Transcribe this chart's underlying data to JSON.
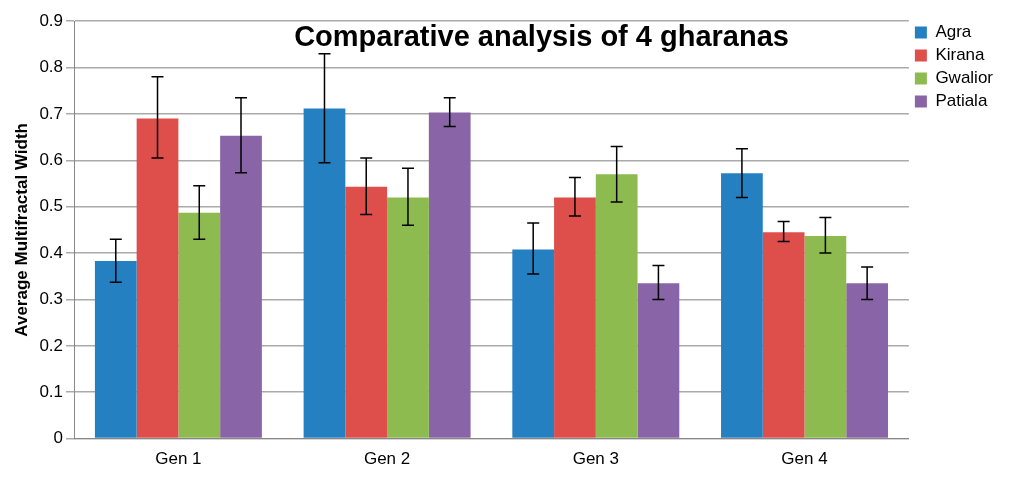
{
  "chart_data": {
    "type": "bar",
    "title": "Comparative analysis of 4 gharanas",
    "ylabel": "Average Multifractal Width",
    "categories": [
      "Gen 1",
      "Gen 2",
      "Gen 3",
      "Gen 4"
    ],
    "series": [
      {
        "name": "Agra",
        "color": "#2580c2",
        "values": [
          0.383,
          0.712,
          0.408,
          0.572
        ],
        "errors": [
          [
            0.337,
            0.43
          ],
          [
            0.595,
            0.83
          ],
          [
            0.355,
            0.465
          ],
          [
            0.52,
            0.625
          ]
        ]
      },
      {
        "name": "Kirana",
        "color": "#de4f4c",
        "values": [
          0.69,
          0.543,
          0.52,
          0.445
        ],
        "errors": [
          [
            0.605,
            0.78
          ],
          [
            0.483,
            0.605
          ],
          [
            0.48,
            0.563
          ],
          [
            0.425,
            0.468
          ]
        ]
      },
      {
        "name": "Gwalior",
        "color": "#8dbb4f",
        "values": [
          0.487,
          0.52,
          0.57,
          0.437
        ],
        "errors": [
          [
            0.43,
            0.545
          ],
          [
            0.46,
            0.583
          ],
          [
            0.51,
            0.63
          ],
          [
            0.4,
            0.477
          ]
        ]
      },
      {
        "name": "Patiala",
        "color": "#8964a6",
        "values": [
          0.653,
          0.703,
          0.335,
          0.335
        ],
        "errors": [
          [
            0.573,
            0.735
          ],
          [
            0.673,
            0.735
          ],
          [
            0.3,
            0.373
          ],
          [
            0.3,
            0.37
          ]
        ]
      }
    ],
    "ylim": [
      0,
      0.9
    ],
    "yticks": [
      0,
      0.1,
      0.2,
      0.3,
      0.4,
      0.5,
      0.6,
      0.7,
      0.8,
      0.9
    ],
    "grid": "y",
    "legend": "right"
  }
}
